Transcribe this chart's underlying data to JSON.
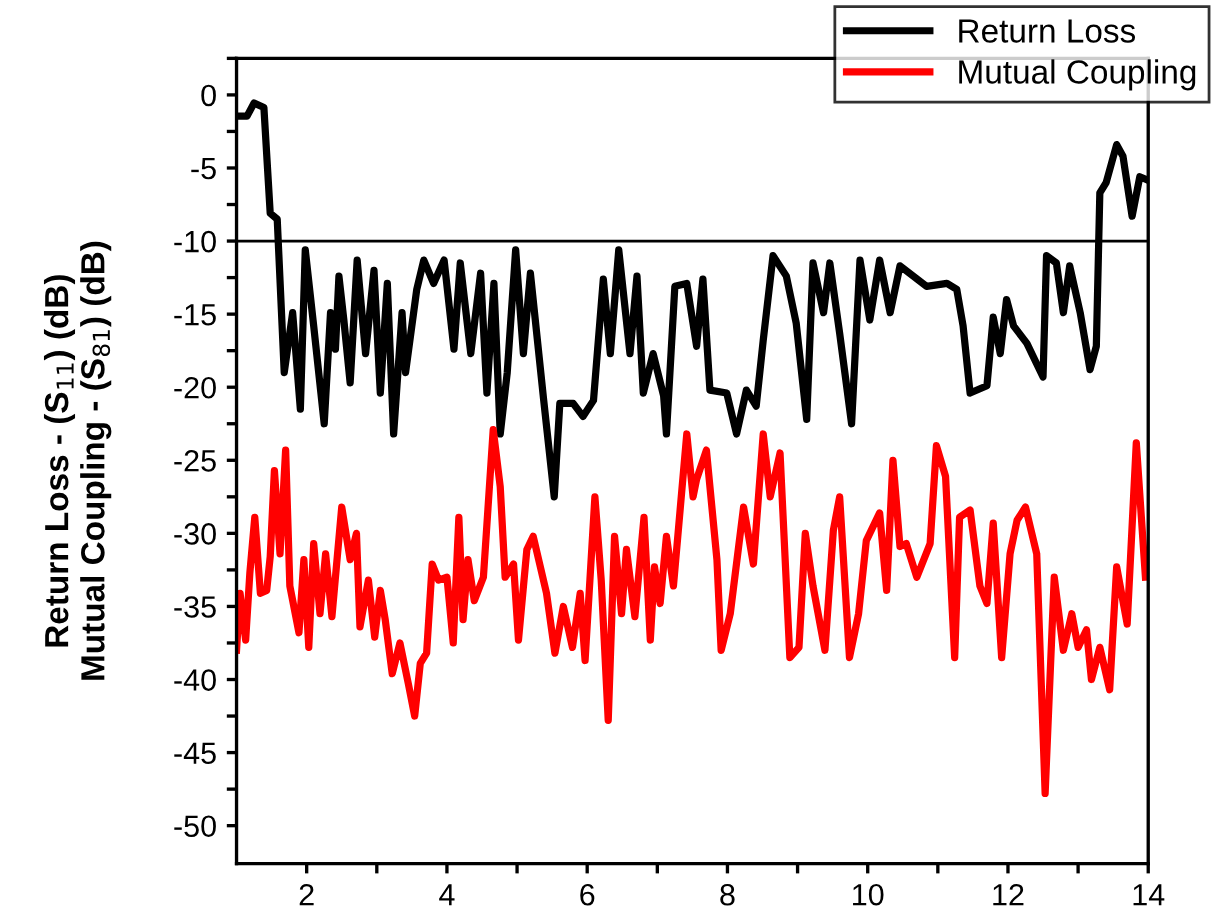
{
  "chart_data": {
    "type": "line",
    "ylabel": "Return Loss - (S$_{11}$) (dB)\nMutual Coupling - (S$_{81}$) (dB)",
    "xlim": [
      1,
      14
    ],
    "ylim": [
      -52.6,
      2.5
    ],
    "xticks": [
      2,
      {
        "value": 3,
        "label": null
      },
      4,
      {
        "value": 5,
        "label": null
      },
      6,
      {
        "value": 7,
        "label": null
      },
      8,
      {
        "value": 9,
        "label": null
      },
      10,
      {
        "value": 11,
        "label": null
      },
      12,
      {
        "value": 13,
        "label": null
      },
      14
    ],
    "yticks": [
      {
        "value": 2.5,
        "label": null
      },
      0,
      {
        "value": -2.5,
        "label": null
      },
      -5,
      {
        "value": -7.5,
        "label": null
      },
      -10,
      {
        "value": -12.5,
        "label": null
      },
      -15,
      {
        "value": -17.5,
        "label": null
      },
      -20,
      {
        "value": -22.5,
        "label": null
      },
      -25,
      {
        "value": -27.5,
        "label": null
      },
      -30,
      {
        "value": -32.5,
        "label": null
      },
      -35,
      {
        "value": -37.5,
        "label": null
      },
      -40,
      {
        "value": -42.5,
        "label": null
      },
      -45,
      {
        "value": -47.5,
        "label": null
      },
      -50
    ],
    "grid": false,
    "legend": "top right",
    "line_style": "solid",
    "marker": "none",
    "ref_lines": [
      {
        "axis": "y",
        "value": -10,
        "color": "#000000"
      }
    ],
    "series": [
      {
        "name": "Return Loss",
        "color": "#000000",
        "x": [
          1.01,
          1.15,
          1.25,
          1.39,
          1.48,
          1.58,
          1.68,
          1.8,
          1.91,
          1.98,
          2.1,
          2.25,
          2.34,
          2.41,
          2.46,
          2.53,
          2.62,
          2.72,
          2.84,
          2.96,
          3.05,
          3.15,
          3.24,
          3.36,
          3.41,
          3.57,
          3.67,
          3.81,
          3.96,
          4.1,
          4.19,
          4.34,
          4.48,
          4.57,
          4.67,
          4.76,
          4.86,
          4.98,
          5.09,
          5.19,
          5.38,
          5.53,
          5.61,
          5.8,
          5.94,
          6.09,
          6.23,
          6.33,
          6.45,
          6.61,
          6.71,
          6.8,
          6.94,
          7.09,
          7.13,
          7.25,
          7.42,
          7.56,
          7.65,
          7.75,
          7.99,
          8.13,
          8.27,
          8.41,
          8.51,
          8.65,
          8.84,
          8.98,
          9.13,
          9.22,
          9.37,
          9.46,
          9.6,
          9.77,
          9.89,
          10.03,
          10.17,
          10.32,
          10.46,
          10.65,
          10.84,
          11.13,
          11.27,
          11.36,
          11.46,
          11.7,
          11.79,
          11.89,
          11.98,
          12.08,
          12.27,
          12.5,
          12.55,
          12.69,
          12.79,
          12.88,
          13.03,
          13.17,
          13.26,
          13.31,
          13.4,
          13.55,
          13.64,
          13.77,
          13.88,
          13.98
        ],
        "values": [
          -1.45,
          -1.45,
          -0.55,
          -0.86,
          -8.1,
          -8.5,
          -19.0,
          -14.9,
          -21.5,
          -10.6,
          -15.8,
          -22.5,
          -14.9,
          -17.4,
          -12.4,
          -15.4,
          -19.7,
          -11.3,
          -17.7,
          -12.0,
          -20.4,
          -12.9,
          -23.2,
          -14.9,
          -19.0,
          -13.3,
          -11.3,
          -12.9,
          -11.3,
          -17.4,
          -11.5,
          -17.7,
          -12.2,
          -20.4,
          -12.9,
          -23.2,
          -19.0,
          -10.6,
          -17.7,
          -12.2,
          -20.9,
          -27.5,
          -21.1,
          -21.1,
          -22.0,
          -20.9,
          -12.6,
          -17.7,
          -10.6,
          -17.7,
          -12.4,
          -20.4,
          -17.7,
          -20.6,
          -23.2,
          -13.1,
          -12.9,
          -17.2,
          -12.6,
          -20.2,
          -20.4,
          -23.2,
          -20.2,
          -21.3,
          -16.8,
          -11.0,
          -12.4,
          -15.6,
          -22.2,
          -11.5,
          -14.9,
          -11.5,
          -16.3,
          -22.5,
          -11.3,
          -15.4,
          -11.3,
          -14.9,
          -11.7,
          -12.4,
          -13.1,
          -12.9,
          -13.3,
          -15.8,
          -20.4,
          -19.9,
          -15.2,
          -17.7,
          -14.0,
          -15.8,
          -17.0,
          -19.3,
          -11.0,
          -11.5,
          -14.9,
          -11.7,
          -14.9,
          -18.8,
          -17.2,
          -6.7,
          -6.0,
          -3.4,
          -4.2,
          -8.3,
          -5.6,
          -5.8
        ]
      },
      {
        "name": "Mutual Coupling",
        "color": "#ff0000",
        "x": [
          1.0,
          1.05,
          1.13,
          1.19,
          1.26,
          1.34,
          1.43,
          1.48,
          1.54,
          1.62,
          1.7,
          1.76,
          1.89,
          1.96,
          2.03,
          2.1,
          2.19,
          2.27,
          2.36,
          2.5,
          2.62,
          2.71,
          2.76,
          2.88,
          2.97,
          3.05,
          3.12,
          3.22,
          3.33,
          3.45,
          3.54,
          3.62,
          3.71,
          3.79,
          3.88,
          4.0,
          4.09,
          4.17,
          4.23,
          4.3,
          4.39,
          4.52,
          4.66,
          4.76,
          4.83,
          4.95,
          5.02,
          5.14,
          5.23,
          5.42,
          5.54,
          5.66,
          5.79,
          5.9,
          5.97,
          6.11,
          6.2,
          6.3,
          6.39,
          6.49,
          6.56,
          6.68,
          6.81,
          6.9,
          6.96,
          7.04,
          7.13,
          7.23,
          7.42,
          7.51,
          7.56,
          7.7,
          7.85,
          7.91,
          8.04,
          8.23,
          8.37,
          8.51,
          8.61,
          8.75,
          8.89,
          9.02,
          9.11,
          9.22,
          9.39,
          9.51,
          9.6,
          9.74,
          9.87,
          9.98,
          10.17,
          10.27,
          10.36,
          10.46,
          10.55,
          10.7,
          10.89,
          10.98,
          11.11,
          11.24,
          11.31,
          11.46,
          11.6,
          11.7,
          11.79,
          11.91,
          12.03,
          12.13,
          12.25,
          12.41,
          12.53,
          12.66,
          12.79,
          12.91,
          13.0,
          13.12,
          13.19,
          13.31,
          13.45,
          13.55,
          13.7,
          13.83,
          13.96
        ],
        "values": [
          -38.0,
          -34.1,
          -37.3,
          -32.7,
          -28.9,
          -34.1,
          -33.9,
          -31.6,
          -25.7,
          -31.4,
          -24.3,
          -33.6,
          -36.8,
          -31.8,
          -37.8,
          -30.7,
          -35.5,
          -31.4,
          -35.7,
          -28.2,
          -31.8,
          -30.0,
          -36.4,
          -33.2,
          -37.1,
          -33.9,
          -35.9,
          -39.6,
          -37.5,
          -40.3,
          -42.5,
          -38.9,
          -38.2,
          -32.1,
          -33.2,
          -33.0,
          -37.5,
          -28.9,
          -35.9,
          -31.8,
          -34.6,
          -33.0,
          -22.9,
          -26.8,
          -33.0,
          -32.1,
          -37.3,
          -31.1,
          -30.2,
          -34.1,
          -38.2,
          -35.0,
          -37.8,
          -34.1,
          -38.7,
          -27.5,
          -33.2,
          -42.8,
          -30.2,
          -35.5,
          -31.1,
          -35.7,
          -28.9,
          -37.3,
          -32.3,
          -34.8,
          -30.2,
          -33.6,
          -23.2,
          -27.5,
          -26.3,
          -24.3,
          -31.8,
          -38.0,
          -35.5,
          -28.2,
          -32.1,
          -23.2,
          -27.5,
          -24.5,
          -38.5,
          -37.8,
          -30.0,
          -33.6,
          -38.0,
          -29.8,
          -27.5,
          -38.5,
          -35.5,
          -30.5,
          -28.6,
          -33.9,
          -25.0,
          -30.9,
          -30.7,
          -33.0,
          -30.7,
          -24.0,
          -26.1,
          -38.5,
          -28.9,
          -28.4,
          -33.6,
          -34.8,
          -29.3,
          -38.5,
          -31.4,
          -29.1,
          -28.2,
          -31.4,
          -47.8,
          -33.0,
          -38.0,
          -35.5,
          -37.8,
          -36.6,
          -40.0,
          -37.8,
          -40.7,
          -32.3,
          -36.2,
          -23.8,
          -33.0
        ]
      }
    ]
  }
}
